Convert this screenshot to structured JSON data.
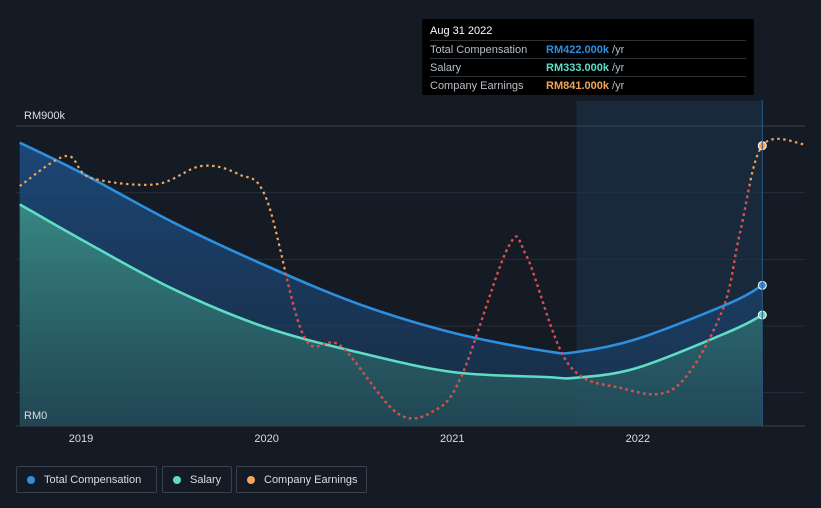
{
  "chart_data": {
    "type": "line",
    "ylim": [
      0,
      900
    ],
    "y_tick_labels": [
      "RM0",
      "RM900k"
    ],
    "x_tick_labels": [
      "2019",
      "2020",
      "2021",
      "2022"
    ],
    "x_domain": [
      2018.65,
      2022.9
    ],
    "highlight_start": 2021.67,
    "series": [
      {
        "name": "Total Compensation",
        "color": "#2d8fe0",
        "x": [
          2018.67,
          2019.0,
          2019.5,
          2020.0,
          2020.5,
          2021.0,
          2021.5,
          2021.67,
          2022.0,
          2022.5,
          2022.67
        ],
        "y": [
          850,
          760,
          610,
          480,
          365,
          280,
          225,
          222,
          262,
          370,
          422
        ]
      },
      {
        "name": "Salary",
        "color": "#5fdcc6",
        "x": [
          2018.67,
          2019.0,
          2019.5,
          2020.0,
          2020.5,
          2021.0,
          2021.5,
          2021.67,
          2022.0,
          2022.5,
          2022.67
        ],
        "y": [
          665,
          560,
          410,
          295,
          220,
          162,
          147,
          145,
          175,
          285,
          333
        ]
      },
      {
        "name": "Company Earnings",
        "color": "#f2a65a",
        "x": [
          2018.67,
          2018.92,
          2019.05,
          2019.4,
          2019.65,
          2019.85,
          2020.0,
          2020.2,
          2020.4,
          2020.7,
          2020.9,
          2021.05,
          2021.3,
          2021.4,
          2021.62,
          2021.9,
          2022.2,
          2022.45,
          2022.55,
          2022.67,
          2022.9
        ],
        "y": [
          720,
          810,
          745,
          725,
          780,
          755,
          680,
          270,
          240,
          40,
          45,
          150,
          535,
          510,
          190,
          115,
          115,
          340,
          580,
          841,
          845
        ]
      }
    ]
  },
  "tooltip": {
    "date": "Aug 31 2022",
    "rows": [
      {
        "label": "Total Compensation",
        "value": "RM422.000k",
        "unit": " /yr",
        "color": "#2d8fe0"
      },
      {
        "label": "Salary",
        "value": "RM333.000k",
        "unit": " /yr",
        "color": "#5fdcc6"
      },
      {
        "label": "Company Earnings",
        "value": "RM841.000k",
        "unit": " /yr",
        "color": "#f2a65a"
      }
    ]
  },
  "legend": [
    {
      "label": "Total Compensation",
      "color": "#2d8fe0"
    },
    {
      "label": "Salary",
      "color": "#5fdcc6"
    },
    {
      "label": "Company Earnings",
      "color": "#f2a65a"
    }
  ]
}
